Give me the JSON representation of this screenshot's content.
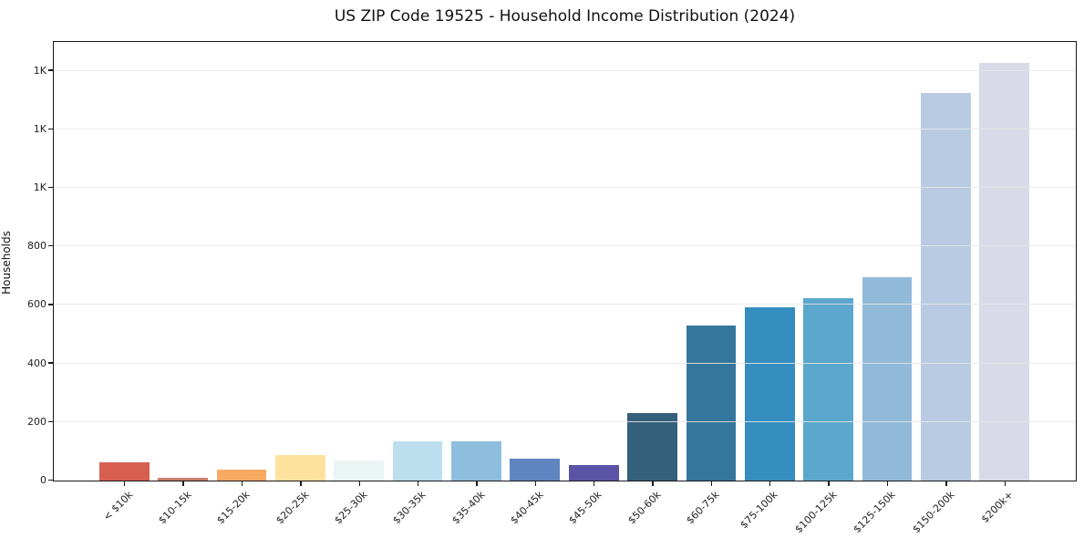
{
  "chart_data": {
    "type": "bar",
    "title": "US ZIP Code 19525 - Household Income Distribution (2024)",
    "xlabel": "",
    "ylabel": "Households",
    "categories": [
      "< $10k",
      "$10-15k",
      "$15-20k",
      "$20-25k",
      "$25-30k",
      "$30-35k",
      "$35-40k",
      "$40-45k",
      "$45-50k",
      "$50-60k",
      "$60-75k",
      "$75-100k",
      "$100-125k",
      "$125-150k",
      "$150-200k",
      "$200k+"
    ],
    "values": [
      62,
      8,
      38,
      87,
      69,
      135,
      133,
      75,
      52,
      230,
      529,
      591,
      624,
      696,
      1325,
      1428
    ],
    "bar_colors": [
      "#d75f50",
      "#c8806a",
      "#f8aa62",
      "#fce29c",
      "#eaf5f4",
      "#bcdeee",
      "#8ebedd",
      "#5f85c0",
      "#5a53a6",
      "#35607b",
      "#35769c",
      "#368dbf",
      "#5ca7cd",
      "#91bad9",
      "#b9cbe2",
      "#d8dae7"
    ],
    "ylim": [
      0,
      1495
    ],
    "yticks": [
      0,
      200,
      400,
      600,
      800,
      1000,
      1200,
      1400
    ],
    "ytick_labels": [
      "0",
      "200",
      "400",
      "600",
      "800",
      "1K",
      "1K",
      "1K"
    ],
    "x_tick_rotation": 45,
    "grid": "horizontal",
    "grid_color": "#e7e7e7",
    "legend": "none",
    "spine_color": "#181818",
    "background_color": "#ffffff"
  }
}
